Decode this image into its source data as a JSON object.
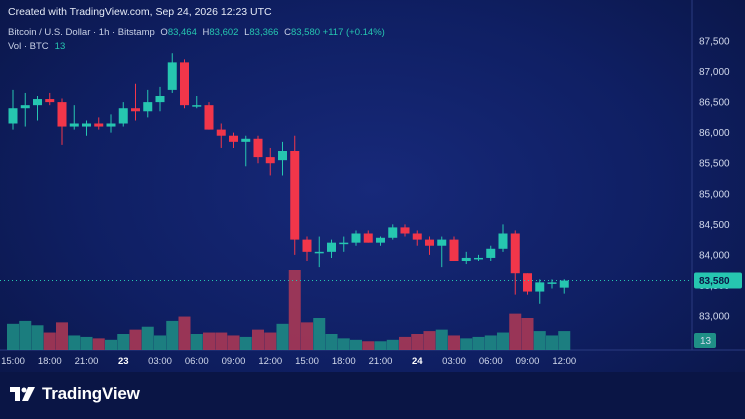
{
  "header": {
    "created": "Created with TradingView.com, Sep 24, 2026 12:23 UTC",
    "symbol": "Bitcoin / U.S. Dollar · 1h · Bitstamp",
    "o_label": "O",
    "o_value": "83,464",
    "h_label": "H",
    "h_value": "83,602",
    "l_label": "L",
    "l_value": "83,366",
    "c_label": "C",
    "c_value": "83,580",
    "change": "+117 (+0.14%)",
    "vol_label": "Vol · BTC",
    "vol_value": "13"
  },
  "footer": {
    "brand": "TradingView"
  },
  "colors": {
    "up": "#26c6b0",
    "down": "#f2364a",
    "background": "#0f1f63",
    "vol_up": "#1f8f86",
    "vol_down": "#b23a55"
  },
  "chart_data": {
    "type": "candlestick",
    "timeframe": "1h",
    "ylim": [
      82800,
      87700
    ],
    "y_ticks": [
      "87,500",
      "87,000",
      "86,500",
      "86,000",
      "85,500",
      "85,000",
      "84,500",
      "84,000",
      "83,500",
      "83,000"
    ],
    "x_tick_labels": [
      {
        "label": "15:00",
        "index": 0,
        "bold": false
      },
      {
        "label": "18:00",
        "index": 3,
        "bold": false
      },
      {
        "label": "21:00",
        "index": 6,
        "bold": false
      },
      {
        "label": "23",
        "index": 9,
        "bold": true
      },
      {
        "label": "03:00",
        "index": 12,
        "bold": false
      },
      {
        "label": "06:00",
        "index": 15,
        "bold": false
      },
      {
        "label": "09:00",
        "index": 18,
        "bold": false
      },
      {
        "label": "12:00",
        "index": 21,
        "bold": false
      },
      {
        "label": "15:00",
        "index": 24,
        "bold": false
      },
      {
        "label": "18:00",
        "index": 27,
        "bold": false
      },
      {
        "label": "21:00",
        "index": 30,
        "bold": false
      },
      {
        "label": "24",
        "index": 33,
        "bold": true
      },
      {
        "label": "03:00",
        "index": 36,
        "bold": false
      },
      {
        "label": "06:00",
        "index": 39,
        "bold": false
      },
      {
        "label": "09:00",
        "index": 42,
        "bold": false
      },
      {
        "label": "12:00",
        "index": 45,
        "bold": false
      }
    ],
    "last_price": 83580,
    "last_price_label": "83,580",
    "last_volume_label": "13",
    "candles": [
      {
        "o": 86150,
        "h": 86700,
        "l": 86050,
        "c": 86400,
        "v": 18
      },
      {
        "o": 86400,
        "h": 86650,
        "l": 86100,
        "c": 86450,
        "v": 20
      },
      {
        "o": 86450,
        "h": 86600,
        "l": 86200,
        "c": 86550,
        "v": 17
      },
      {
        "o": 86550,
        "h": 86650,
        "l": 86450,
        "c": 86500,
        "v": 12
      },
      {
        "o": 86500,
        "h": 86560,
        "l": 85800,
        "c": 86100,
        "v": 19
      },
      {
        "o": 86100,
        "h": 86450,
        "l": 86050,
        "c": 86150,
        "v": 10
      },
      {
        "o": 86100,
        "h": 86200,
        "l": 85950,
        "c": 86150,
        "v": 9
      },
      {
        "o": 86150,
        "h": 86250,
        "l": 86050,
        "c": 86100,
        "v": 8
      },
      {
        "o": 86100,
        "h": 86300,
        "l": 86000,
        "c": 86150,
        "v": 7
      },
      {
        "o": 86150,
        "h": 86500,
        "l": 86100,
        "c": 86400,
        "v": 11
      },
      {
        "o": 86400,
        "h": 86800,
        "l": 86200,
        "c": 86350,
        "v": 14
      },
      {
        "o": 86350,
        "h": 86700,
        "l": 86250,
        "c": 86500,
        "v": 16
      },
      {
        "o": 86500,
        "h": 86750,
        "l": 86350,
        "c": 86600,
        "v": 10
      },
      {
        "o": 86700,
        "h": 87300,
        "l": 86650,
        "c": 87150,
        "v": 20
      },
      {
        "o": 87150,
        "h": 87200,
        "l": 86400,
        "c": 86450,
        "v": 23
      },
      {
        "o": 86450,
        "h": 86600,
        "l": 86400,
        "c": 86450,
        "v": 11
      },
      {
        "o": 86450,
        "h": 86500,
        "l": 86050,
        "c": 86050,
        "v": 12
      },
      {
        "o": 86050,
        "h": 86150,
        "l": 85750,
        "c": 85950,
        "v": 12
      },
      {
        "o": 85950,
        "h": 86000,
        "l": 85750,
        "c": 85850,
        "v": 10
      },
      {
        "o": 85850,
        "h": 85950,
        "l": 85450,
        "c": 85900,
        "v": 9
      },
      {
        "o": 85900,
        "h": 85950,
        "l": 85500,
        "c": 85600,
        "v": 14
      },
      {
        "o": 85600,
        "h": 85750,
        "l": 85300,
        "c": 85500,
        "v": 12
      },
      {
        "o": 85550,
        "h": 85850,
        "l": 85300,
        "c": 85700,
        "v": 18
      },
      {
        "o": 85700,
        "h": 85950,
        "l": 84000,
        "c": 84250,
        "v": 55
      },
      {
        "o": 84250,
        "h": 84300,
        "l": 83900,
        "c": 84050,
        "v": 19
      },
      {
        "o": 84050,
        "h": 84300,
        "l": 83800,
        "c": 84050,
        "v": 22
      },
      {
        "o": 84050,
        "h": 84250,
        "l": 83950,
        "c": 84200,
        "v": 11
      },
      {
        "o": 84200,
        "h": 84300,
        "l": 84050,
        "c": 84200,
        "v": 8
      },
      {
        "o": 84200,
        "h": 84400,
        "l": 84150,
        "c": 84350,
        "v": 7
      },
      {
        "o": 84350,
        "h": 84400,
        "l": 84200,
        "c": 84200,
        "v": 6
      },
      {
        "o": 84200,
        "h": 84300,
        "l": 84150,
        "c": 84280,
        "v": 6
      },
      {
        "o": 84280,
        "h": 84500,
        "l": 84250,
        "c": 84450,
        "v": 7
      },
      {
        "o": 84450,
        "h": 84500,
        "l": 84300,
        "c": 84350,
        "v": 9
      },
      {
        "o": 84350,
        "h": 84400,
        "l": 84150,
        "c": 84250,
        "v": 11
      },
      {
        "o": 84250,
        "h": 84300,
        "l": 84000,
        "c": 84150,
        "v": 13
      },
      {
        "o": 84150,
        "h": 84300,
        "l": 83800,
        "c": 84250,
        "v": 14
      },
      {
        "o": 84250,
        "h": 84300,
        "l": 83900,
        "c": 83900,
        "v": 10
      },
      {
        "o": 83900,
        "h": 84050,
        "l": 83850,
        "c": 83950,
        "v": 8
      },
      {
        "o": 83950,
        "h": 84000,
        "l": 83900,
        "c": 83950,
        "v": 9
      },
      {
        "o": 83950,
        "h": 84150,
        "l": 83900,
        "c": 84100,
        "v": 10
      },
      {
        "o": 84100,
        "h": 84500,
        "l": 84050,
        "c": 84350,
        "v": 12
      },
      {
        "o": 84350,
        "h": 84400,
        "l": 83350,
        "c": 83700,
        "v": 25
      },
      {
        "o": 83700,
        "h": 83700,
        "l": 83350,
        "c": 83400,
        "v": 22
      },
      {
        "o": 83400,
        "h": 83600,
        "l": 83200,
        "c": 83550,
        "v": 13
      },
      {
        "o": 83550,
        "h": 83600,
        "l": 83450,
        "c": 83550,
        "v": 10
      },
      {
        "o": 83464,
        "h": 83602,
        "l": 83366,
        "c": 83580,
        "v": 13
      }
    ]
  }
}
